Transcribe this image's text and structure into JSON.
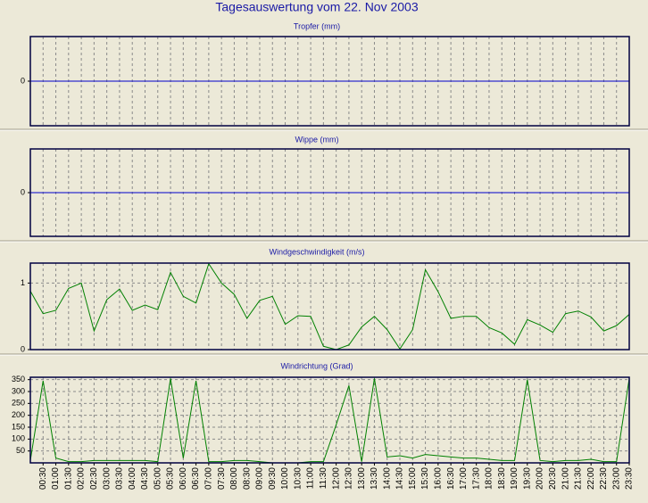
{
  "title": "Tagesauswertung vom 22. Nov 2003",
  "chart_data": [
    {
      "type": "line",
      "title": "Tropfer (mm)",
      "color": "#0000cc",
      "grid": true,
      "values": [
        0,
        0,
        0,
        0,
        0,
        0,
        0,
        0,
        0,
        0,
        0,
        0,
        0,
        0,
        0,
        0,
        0,
        0,
        0,
        0,
        0,
        0,
        0,
        0,
        0,
        0,
        0,
        0,
        0,
        0,
        0,
        0,
        0,
        0,
        0,
        0,
        0,
        0,
        0,
        0,
        0,
        0,
        0,
        0,
        0,
        0,
        0,
        0
      ],
      "ylim": [
        -1,
        1
      ],
      "yticks": [
        0
      ]
    },
    {
      "type": "line",
      "title": "Wippe (mm)",
      "color": "#0000cc",
      "grid": true,
      "values": [
        0,
        0,
        0,
        0,
        0,
        0,
        0,
        0,
        0,
        0,
        0,
        0,
        0,
        0,
        0,
        0,
        0,
        0,
        0,
        0,
        0,
        0,
        0,
        0,
        0,
        0,
        0,
        0,
        0,
        0,
        0,
        0,
        0,
        0,
        0,
        0,
        0,
        0,
        0,
        0,
        0,
        0,
        0,
        0,
        0,
        0,
        0,
        0
      ],
      "ylim": [
        -1,
        1
      ],
      "yticks": [
        0
      ]
    },
    {
      "type": "line",
      "title": "Windgeschwindigkeit (m/s)",
      "color": "#008000",
      "grid": true,
      "values": [
        0.88,
        0.54,
        0.59,
        0.92,
        1.0,
        0.28,
        0.75,
        0.91,
        0.59,
        0.67,
        0.6,
        1.16,
        0.8,
        0.7,
        1.29,
        1.0,
        0.83,
        0.47,
        0.74,
        0.8,
        0.38,
        0.51,
        0.5,
        0.05,
        0.0,
        0.07,
        0.34,
        0.5,
        0.3,
        0.01,
        0.3,
        1.2,
        0.87,
        0.47,
        0.5,
        0.5,
        0.33,
        0.25,
        0.08,
        0.45,
        0.37,
        0.26,
        0.54,
        0.58,
        0.49,
        0.28,
        0.36,
        0.53
      ],
      "ylim": [
        0,
        1.3
      ],
      "yticks": [
        0,
        1
      ]
    },
    {
      "type": "line",
      "title": "Windrichtung (Grad)",
      "color": "#008000",
      "grid": true,
      "categories": [
        null,
        "00:30",
        "01:00",
        "01:30",
        "02:00",
        "02:30",
        "03:00",
        "03:30",
        "04:00",
        "04:30",
        "05:00",
        "05:30",
        "06:00",
        "06:30",
        "07:00",
        "07:30",
        "08:00",
        "08:30",
        "09:00",
        "09:30",
        "10:00",
        "10:30",
        "11:00",
        "11:30",
        "12:00",
        "12:30",
        "13:00",
        "13:30",
        "14:00",
        "14:30",
        "15:00",
        "15:30",
        "16:00",
        "16:30",
        "17:00",
        "17:30",
        "18:00",
        "18:30",
        "19:00",
        "19:30",
        "20:00",
        "20:30",
        "21:00",
        "21:30",
        "22:00",
        "22:30",
        "23:00",
        "23:30"
      ],
      "values": [
        10,
        345,
        20,
        5,
        5,
        10,
        10,
        10,
        10,
        10,
        5,
        355,
        20,
        345,
        5,
        5,
        10,
        10,
        5,
        0,
        0,
        0,
        5,
        5,
        160,
        325,
        5,
        355,
        25,
        30,
        20,
        35,
        30,
        25,
        20,
        20,
        15,
        10,
        10,
        350,
        10,
        5,
        10,
        10,
        15,
        5,
        5,
        355
      ],
      "ylim": [
        0,
        360
      ],
      "yticks": [
        50,
        100,
        150,
        200,
        250,
        300,
        350
      ]
    }
  ]
}
